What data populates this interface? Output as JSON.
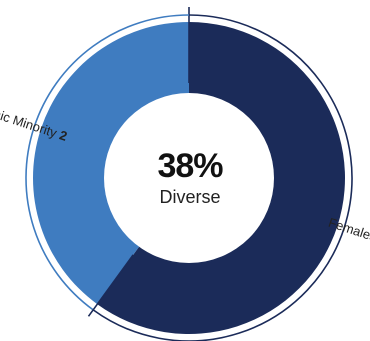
{
  "chart_data": {
    "type": "pie",
    "title": "",
    "series": [
      {
        "name": "Females",
        "value": 3,
        "color": "#1b2b59"
      },
      {
        "name": "Ethnic Minority",
        "value": 2,
        "color": "#3f7cc0"
      }
    ],
    "center_value": "38%",
    "center_label": "Diverse",
    "legend": "none"
  }
}
